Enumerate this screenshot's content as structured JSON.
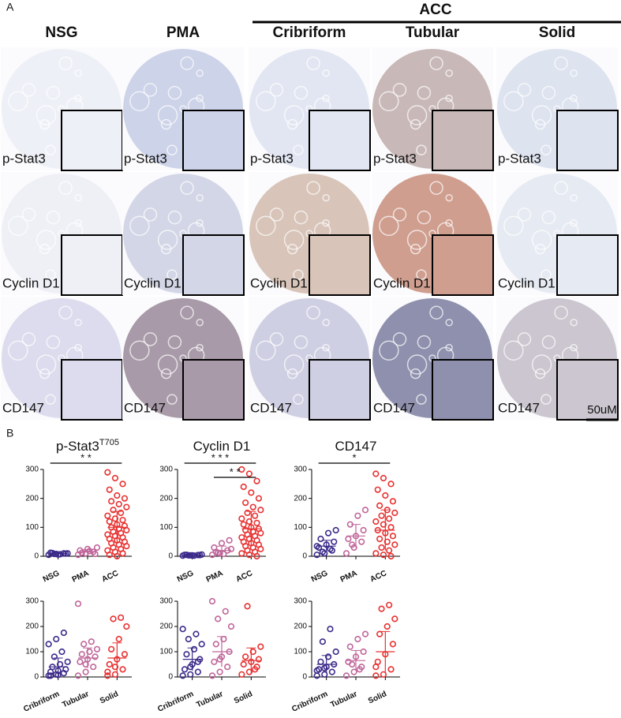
{
  "panel_a": {
    "label": "A",
    "group_header": "ACC",
    "columns": [
      "NSG",
      "PMA",
      "Cribriform",
      "Tubular",
      "Solid"
    ],
    "rows": [
      "p-Stat3",
      "Cyclin D1",
      "CD147"
    ],
    "scale_bar": "50uM"
  },
  "panel_b_label": "B",
  "chart_data": [
    {
      "type": "scatter",
      "title": "p-Stat3",
      "title_superscript": "T705",
      "categories": [
        "NSG",
        "PMA",
        "ACC"
      ],
      "series": [
        {
          "color": "#3b2a8a",
          "values": [
            5,
            8,
            10,
            12,
            6,
            9,
            11,
            7,
            10,
            8
          ],
          "mean": 9,
          "sd": 2
        },
        {
          "color": "#c0669a",
          "values": [
            5,
            10,
            15,
            20,
            25,
            8,
            12,
            18,
            30
          ],
          "mean": 15,
          "sd": 8
        },
        {
          "color": "#e83030",
          "values": [
            290,
            270,
            250,
            230,
            210,
            200,
            190,
            180,
            170,
            160,
            150,
            140,
            130,
            125,
            120,
            110,
            105,
            100,
            95,
            90,
            85,
            80,
            75,
            70,
            65,
            60,
            55,
            50,
            45,
            40,
            35,
            30,
            25,
            20,
            15,
            10,
            5,
            0
          ],
          "mean": 100,
          "sd": 55
        }
      ],
      "significance": [
        {
          "from": 0,
          "to": 2,
          "label": "* *"
        }
      ],
      "ylim": [
        0,
        300
      ],
      "yticks": [
        0,
        100,
        200,
        300
      ]
    },
    {
      "type": "scatter",
      "title": "Cyclin D1",
      "categories": [
        "NSG",
        "PMA",
        "ACC"
      ],
      "series": [
        {
          "color": "#3b2a8a",
          "values": [
            2,
            3,
            4,
            5,
            3,
            4,
            5,
            2,
            6,
            3
          ],
          "mean": 4,
          "sd": 1
        },
        {
          "color": "#c0669a",
          "values": [
            5,
            10,
            20,
            30,
            45,
            55,
            15,
            8,
            25,
            12
          ],
          "mean": 20,
          "sd": 15
        },
        {
          "color": "#e83030",
          "values": [
            300,
            285,
            260,
            240,
            220,
            200,
            185,
            170,
            160,
            150,
            140,
            130,
            120,
            115,
            110,
            100,
            95,
            90,
            85,
            80,
            75,
            70,
            65,
            60,
            55,
            50,
            45,
            40,
            35,
            30,
            25,
            20,
            15,
            10,
            5,
            0
          ],
          "mean": 95,
          "sd": 60
        }
      ],
      "significance": [
        {
          "from": 0,
          "to": 2,
          "label": "* * *"
        },
        {
          "from": 1,
          "to": 2,
          "label": "* *"
        }
      ],
      "ylim": [
        0,
        300
      ],
      "yticks": [
        0,
        100,
        200,
        300
      ]
    },
    {
      "type": "scatter",
      "title": "CD147",
      "categories": [
        "NSG",
        "PMA",
        "ACC"
      ],
      "series": [
        {
          "color": "#3b2a8a",
          "values": [
            5,
            10,
            20,
            30,
            40,
            50,
            60,
            80,
            90,
            15,
            25,
            35
          ],
          "mean": 35,
          "sd": 20
        },
        {
          "color": "#c0669a",
          "values": [
            10,
            30,
            50,
            60,
            70,
            90,
            110,
            140,
            160,
            40
          ],
          "mean": 70,
          "sd": 40
        },
        {
          "color": "#e83030",
          "values": [
            285,
            270,
            250,
            230,
            210,
            190,
            175,
            160,
            150,
            140,
            130,
            120,
            110,
            100,
            90,
            80,
            70,
            60,
            50,
            40,
            30,
            20,
            10,
            5,
            0
          ],
          "mean": 90,
          "sd": 70
        }
      ],
      "significance": [
        {
          "from": 0,
          "to": 2,
          "label": "*"
        }
      ],
      "ylim": [
        0,
        300
      ],
      "yticks": [
        0,
        100,
        200,
        300
      ]
    },
    {
      "type": "scatter",
      "categories": [
        "Cribriform",
        "Tubular",
        "Solid"
      ],
      "series": [
        {
          "color": "#3b2a8a",
          "values": [
            5,
            10,
            15,
            20,
            25,
            30,
            40,
            50,
            60,
            80,
            100,
            130,
            150,
            175,
            5,
            8
          ],
          "mean": 40,
          "sd": 35
        },
        {
          "color": "#c0669a",
          "values": [
            5,
            20,
            40,
            60,
            70,
            80,
            90,
            100,
            110,
            130,
            140,
            290,
            50
          ],
          "mean": 75,
          "sd": 40
        },
        {
          "color": "#e83030",
          "values": [
            5,
            10,
            30,
            50,
            70,
            90,
            110,
            150,
            200,
            230,
            235,
            20,
            40
          ],
          "mean": 75,
          "sd": 60
        }
      ],
      "ylim": [
        0,
        300
      ],
      "yticks": [
        0,
        100,
        200,
        300
      ]
    },
    {
      "type": "scatter",
      "categories": [
        "Cribriform",
        "Tubular",
        "Solid"
      ],
      "series": [
        {
          "color": "#3b2a8a",
          "values": [
            5,
            10,
            20,
            30,
            50,
            70,
            90,
            110,
            130,
            150,
            170,
            190,
            40,
            60
          ],
          "mean": 70,
          "sd": 45
        },
        {
          "color": "#c0669a",
          "values": [
            5,
            20,
            40,
            60,
            80,
            100,
            130,
            150,
            200,
            230,
            260,
            300,
            70
          ],
          "mean": 100,
          "sd": 60
        },
        {
          "color": "#e83030",
          "values": [
            10,
            20,
            40,
            50,
            60,
            70,
            80,
            100,
            120,
            280,
            30
          ],
          "mean": 65,
          "sd": 50
        }
      ],
      "ylim": [
        0,
        300
      ],
      "yticks": [
        0,
        100,
        200,
        300
      ]
    },
    {
      "type": "scatter",
      "categories": [
        "Cribriform",
        "Tubular",
        "Solid"
      ],
      "series": [
        {
          "color": "#3b2a8a",
          "values": [
            5,
            10,
            20,
            30,
            40,
            50,
            60,
            80,
            100,
            140,
            190,
            25,
            35
          ],
          "mean": 50,
          "sd": 35
        },
        {
          "color": "#c0669a",
          "values": [
            5,
            20,
            40,
            60,
            80,
            100,
            120,
            150,
            170,
            50,
            30
          ],
          "mean": 65,
          "sd": 40
        },
        {
          "color": "#e83030",
          "values": [
            5,
            10,
            30,
            60,
            90,
            130,
            170,
            200,
            230,
            270,
            285,
            40
          ],
          "mean": 100,
          "sd": 80
        }
      ],
      "ylim": [
        0,
        300
      ],
      "yticks": [
        0,
        100,
        200,
        300
      ]
    }
  ]
}
